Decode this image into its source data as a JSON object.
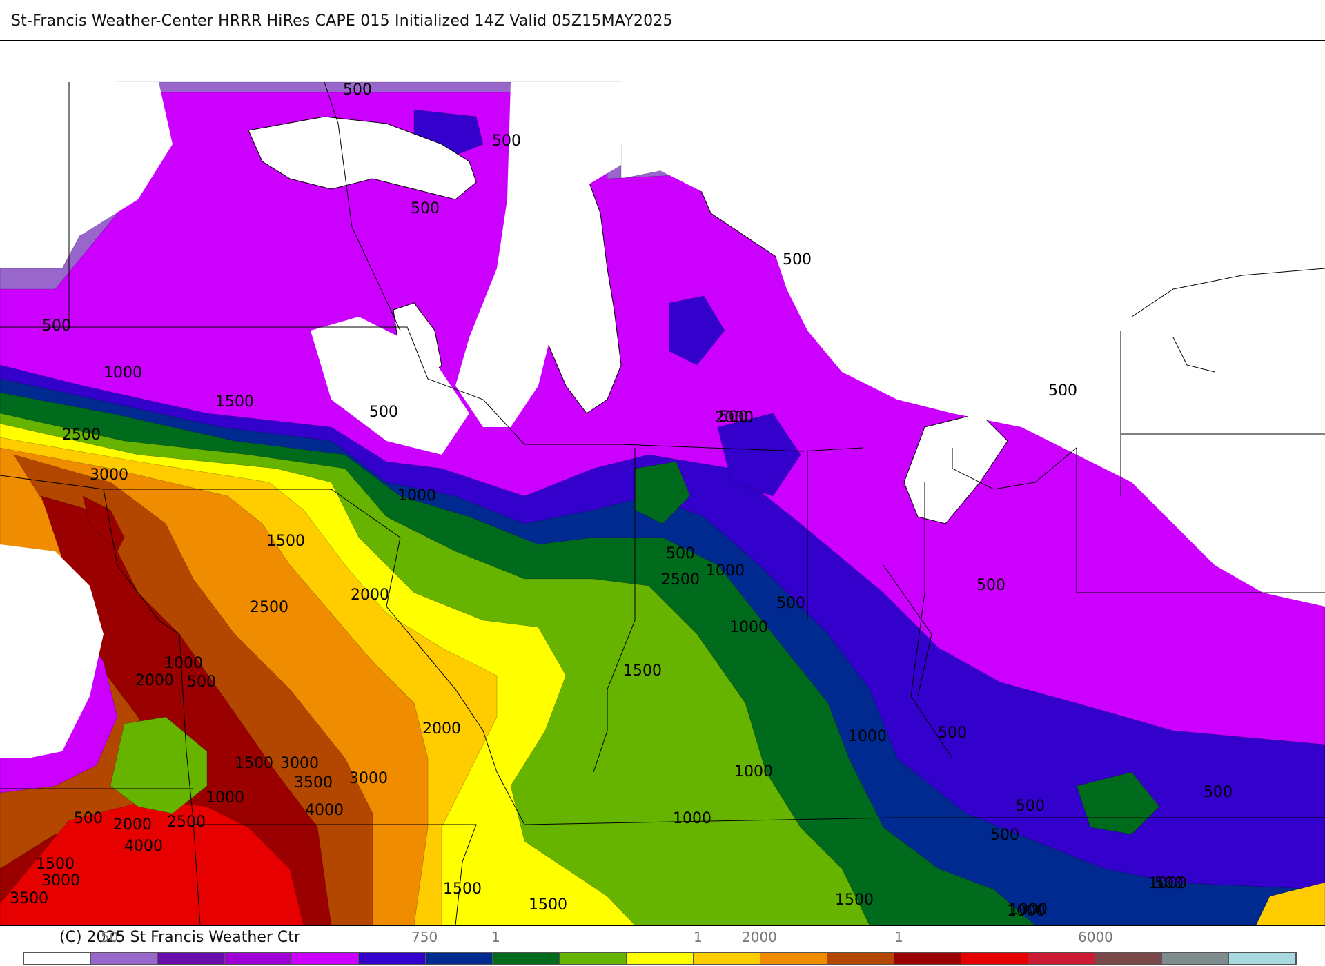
{
  "header": {
    "title": "St-Francis Weather-Center HRRR HiRes CAPE  015 Initialized  14Z Valid 05Z15MAY2025"
  },
  "footer": {
    "copyright": "(C) 2025 St Francis Weather Ctr",
    "ticks": [
      "50",
      "750",
      "1",
      "1",
      "2000",
      "1",
      "6000"
    ]
  },
  "legend": {
    "colors": [
      "#ffffff",
      "#9966cc",
      "#6a0dad",
      "#9f00d8",
      "#cc00ff",
      "#3300cc",
      "#002a8f",
      "#006b1c",
      "#66b300",
      "#ffff00",
      "#ffcc00",
      "#f08c00",
      "#b34700",
      "#9b0000",
      "#e60000",
      "#cc1a33",
      "#7a4a4a",
      "#7f8c8d",
      "#a8d8e0"
    ]
  },
  "map": {
    "fill_colors": {
      "light_purple": "#9966cc",
      "dark_purple": "#6a0dad",
      "violet": "#9f00d8",
      "magenta": "#cc00ff",
      "blue": "#3300cc",
      "navy": "#002a8f",
      "dark_green": "#006b1c",
      "green": "#66b300",
      "yellow": "#ffff00",
      "gold": "#ffcc00",
      "orange": "#f08c00",
      "brown": "#b34700",
      "dark_red": "#9b0000",
      "red": "#e60000"
    },
    "contour_labels": [
      "500",
      "500",
      "500",
      "500",
      "500",
      "1000",
      "1500",
      "500",
      "2500",
      "3000",
      "1000",
      "2000",
      "1500",
      "2000",
      "2500",
      "2500",
      "1000",
      "2000",
      "500",
      "2000",
      "1500",
      "3000",
      "3500",
      "3000",
      "1000",
      "4000",
      "500",
      "2000",
      "2500",
      "4000",
      "1500",
      "3000",
      "3500",
      "1500",
      "1500",
      "500",
      "500",
      "500",
      "1000",
      "500",
      "1000",
      "1500",
      "500",
      "1000",
      "1000",
      "500",
      "500",
      "500",
      "1000",
      "1500",
      "1000",
      "500",
      "500",
      "1000",
      "1000"
    ]
  }
}
